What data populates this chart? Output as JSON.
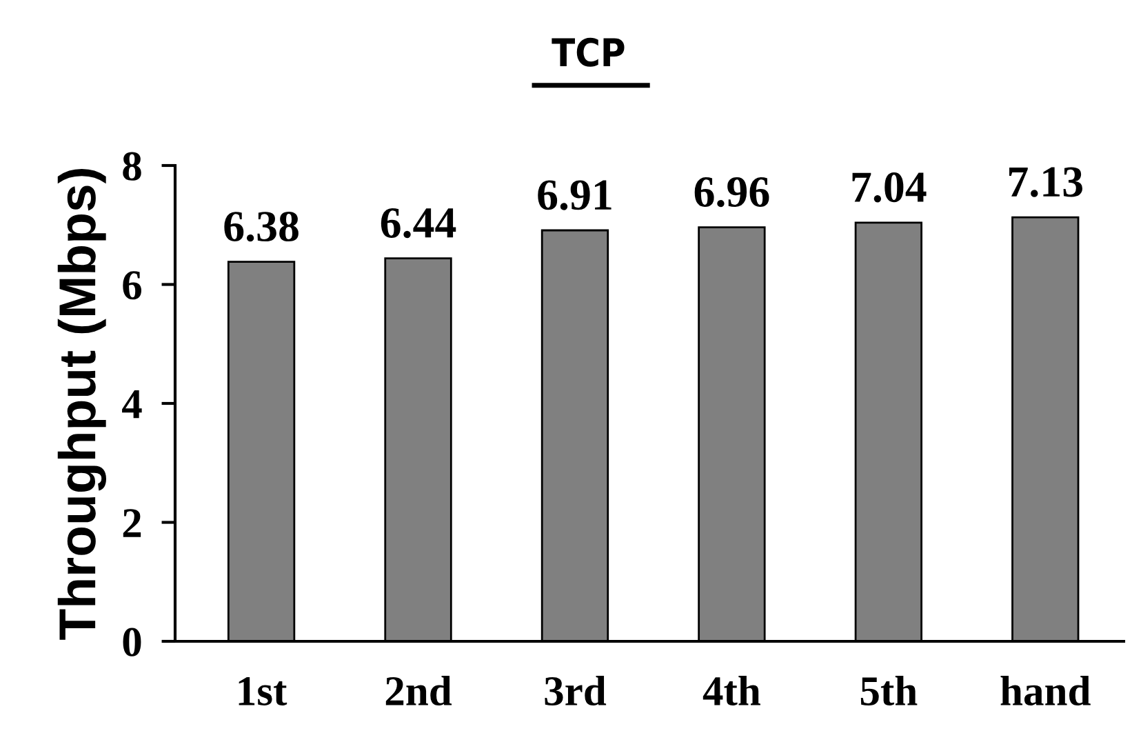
{
  "chart_data": {
    "type": "bar",
    "title": "TCP",
    "ylabel": "Throughput (Mbps)",
    "categories": [
      "1st",
      "2nd",
      "3rd",
      "4th",
      "5th",
      "hand"
    ],
    "values": [
      6.38,
      6.44,
      6.91,
      6.96,
      7.04,
      7.13
    ],
    "color": "#808080",
    "ylim": [
      0,
      8
    ],
    "yticks": [
      0,
      2,
      4,
      6,
      8
    ],
    "grid": false,
    "data_labels": true,
    "legend": false
  }
}
